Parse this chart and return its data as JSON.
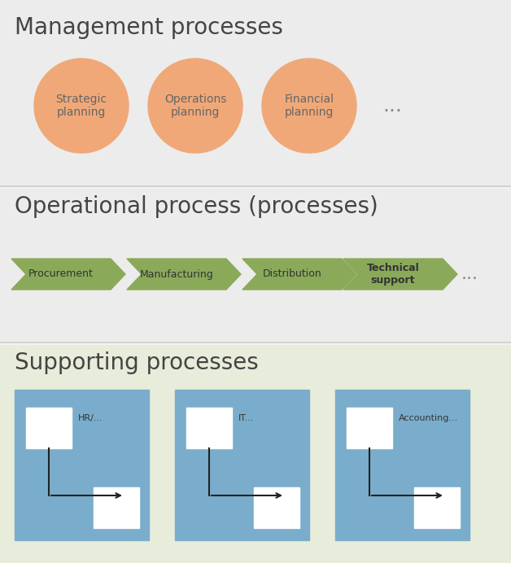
{
  "bg_color": "#f5f5f5",
  "section1_bg": "#ececec",
  "section2_bg": "#ececec",
  "section3_bg": "#e8ecda",
  "circle_color": "#f0a878",
  "circle_labels": [
    "Strategic\nplanning",
    "Operations\nplanning",
    "Financial\nplanning"
  ],
  "dots": "...",
  "arrow_color": "#8aaa5a",
  "arrow_labels": [
    "Procurement",
    "Manufacturing",
    "Distribution",
    "Technical\nsupport"
  ],
  "box_bg": "#7aadcc",
  "box_inner": "#ffffff",
  "title1": "Management processes",
  "title2": "Operational process (processes)",
  "title3": "Supporting processes",
  "title_color": "#444444",
  "supporting_labels": [
    "HR/...",
    "IT...",
    "Accounting..."
  ],
  "label_color": "#555555",
  "arrow_label_color": "#333333"
}
